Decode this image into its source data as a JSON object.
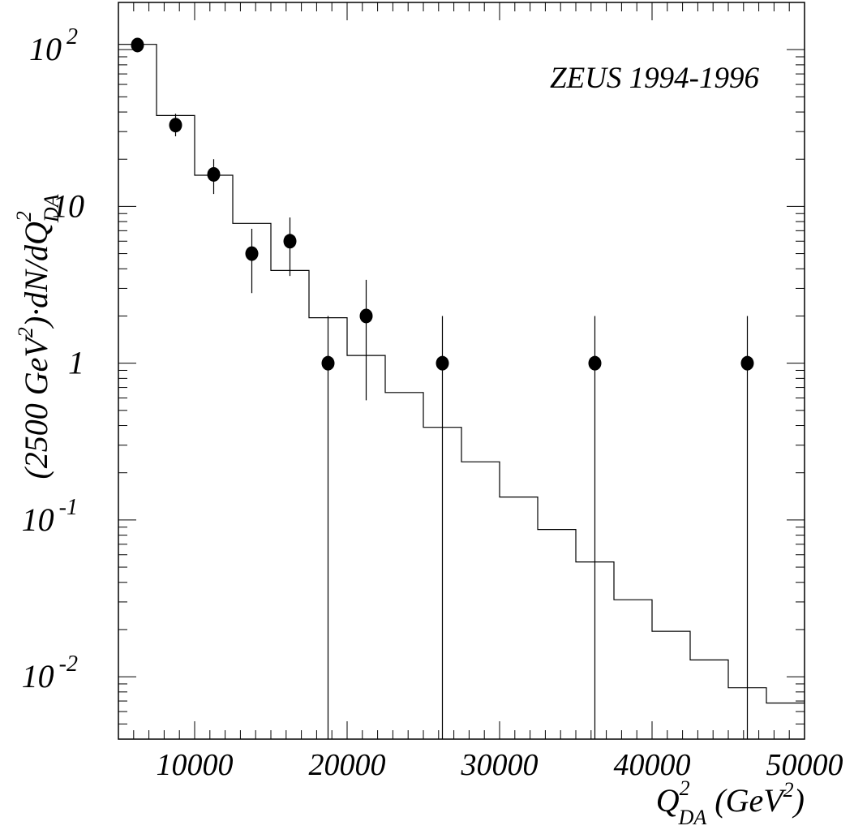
{
  "chart_data": {
    "type": "scatter",
    "title": "",
    "annotation": "ZEUS 1994-1996",
    "xlabel": {
      "main": "Q",
      "sup": "2",
      "sub": "DA",
      "unit_open": " (GeV",
      "unit_sup": "2",
      "unit_close": ")"
    },
    "ylabel": {
      "prefix": "(2500 GeV",
      "sup": "2",
      "mid": ")·dN/dQ",
      "sup2": "2",
      "sub": "DA"
    },
    "xlim": [
      5000,
      50000
    ],
    "ylim": [
      0.004,
      200
    ],
    "yscale": "log",
    "grid": false,
    "x_ticks": [
      {
        "value": 10000,
        "label": "10000"
      },
      {
        "value": 20000,
        "label": "20000"
      },
      {
        "value": 30000,
        "label": "30000"
      },
      {
        "value": 40000,
        "label": "40000"
      },
      {
        "value": 50000,
        "label": "50000"
      }
    ],
    "y_ticks": [
      {
        "value": 100,
        "base": "10",
        "exp": "2"
      },
      {
        "value": 10,
        "base": "10",
        "exp": ""
      },
      {
        "value": 1,
        "base": "1",
        "exp": ""
      },
      {
        "value": 0.1,
        "base": "10",
        "exp": "-1"
      },
      {
        "value": 0.01,
        "base": "10",
        "exp": "-2"
      }
    ],
    "points": [
      {
        "x": 6250,
        "y": 107,
        "ylow": 97,
        "yhigh": 117
      },
      {
        "x": 8750,
        "y": 33,
        "ylow": 28,
        "yhigh": 39
      },
      {
        "x": 11250,
        "y": 16,
        "ylow": 12,
        "yhigh": 20
      },
      {
        "x": 13750,
        "y": 5,
        "ylow": 2.8,
        "yhigh": 7.2
      },
      {
        "x": 16250,
        "y": 6,
        "ylow": 3.6,
        "yhigh": 8.5
      },
      {
        "x": 18750,
        "y": 1,
        "ylow": 0.004,
        "yhigh": 2.0
      },
      {
        "x": 21250,
        "y": 2,
        "ylow": 0.58,
        "yhigh": 3.4
      },
      {
        "x": 26250,
        "y": 1,
        "ylow": 0.004,
        "yhigh": 2.0
      },
      {
        "x": 36250,
        "y": 1,
        "ylow": 0.004,
        "yhigh": 2.0
      },
      {
        "x": 46250,
        "y": 1,
        "ylow": 0.004,
        "yhigh": 2.0
      }
    ],
    "histogram": {
      "edges": [
        5000,
        7500,
        10000,
        12500,
        15000,
        17500,
        20000,
        22500,
        25000,
        27500,
        30000,
        32500,
        35000,
        37500,
        40000,
        42500,
        45000,
        47500,
        50000
      ],
      "values": [
        108,
        38,
        15.8,
        7.8,
        3.9,
        1.95,
        1.12,
        0.65,
        0.39,
        0.235,
        0.14,
        0.087,
        0.054,
        0.031,
        0.0195,
        0.0128,
        0.0085,
        0.0068
      ]
    }
  }
}
